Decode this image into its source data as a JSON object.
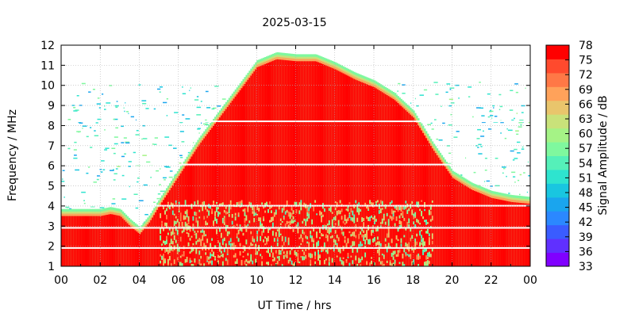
{
  "chart_data": {
    "type": "heatmap",
    "title": "2025-03-15",
    "xlabel": "UT Time / hrs",
    "ylabel": "Frequency / MHz",
    "colorbar_label": "Signal Amplitude / dB",
    "xlim": [
      0,
      24
    ],
    "ylim": [
      1,
      12
    ],
    "x_ticks": [
      "00",
      "02",
      "04",
      "06",
      "08",
      "10",
      "12",
      "14",
      "16",
      "18",
      "20",
      "22",
      "00"
    ],
    "y_ticks": [
      "1",
      "2",
      "3",
      "4",
      "5",
      "6",
      "7",
      "8",
      "9",
      "10",
      "11",
      "12"
    ],
    "colorbar_ticks": [
      "78",
      "75",
      "72",
      "69",
      "66",
      "63",
      "60",
      "57",
      "54",
      "51",
      "48",
      "45",
      "42",
      "39",
      "36",
      "33"
    ],
    "colorbar_range": [
      33,
      78
    ],
    "colorscale": [
      "#8000ff",
      "#6030ff",
      "#3a5cff",
      "#2b88ff",
      "#1aa5ee",
      "#19c6e0",
      "#2ee4cf",
      "#55f0b9",
      "#7ff89e",
      "#a5f386",
      "#c9e27a",
      "#e9c56c",
      "#ffa25a",
      "#ff7846",
      "#ff4a2d",
      "#ff0000"
    ],
    "grid": true,
    "series": [
      {
        "x": [
          0,
          1,
          2,
          2.5,
          3,
          3.5,
          4,
          4.5,
          5,
          6,
          7,
          8,
          9,
          10,
          11,
          12,
          13,
          14,
          15,
          16,
          17,
          18,
          19,
          20,
          21,
          22,
          23,
          24
        ],
        "values": [
          3.5,
          3.5,
          3.5,
          3.6,
          3.5,
          3.0,
          2.6,
          3.2,
          4.0,
          5.5,
          7.0,
          8.3,
          9.6,
          10.9,
          11.3,
          11.2,
          11.2,
          10.8,
          10.3,
          9.9,
          9.3,
          8.4,
          6.8,
          5.4,
          4.8,
          4.4,
          4.2,
          4.1
        ]
      }
    ]
  }
}
